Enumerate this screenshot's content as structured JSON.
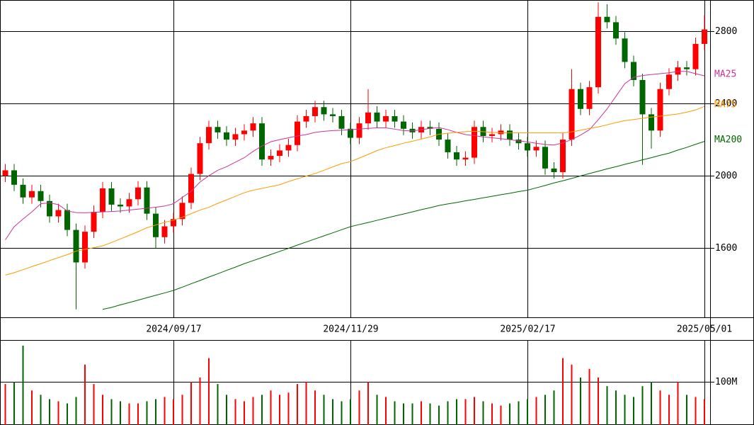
{
  "chart_data": {
    "type": "candlestick",
    "categories": [
      null,
      null,
      null,
      null,
      null,
      null,
      null,
      null,
      null,
      null,
      null,
      null,
      null,
      null,
      null,
      null,
      null,
      null,
      null,
      "2024/09/17",
      null,
      null,
      null,
      null,
      null,
      null,
      null,
      null,
      null,
      null,
      null,
      null,
      null,
      null,
      null,
      null,
      null,
      null,
      null,
      "2024/11/29",
      null,
      null,
      null,
      null,
      null,
      null,
      null,
      null,
      null,
      null,
      null,
      null,
      null,
      null,
      null,
      null,
      null,
      null,
      null,
      "2025/02/17",
      null,
      null,
      null,
      null,
      null,
      null,
      null,
      null,
      null,
      null,
      null,
      null,
      null,
      null,
      null,
      null,
      null,
      null,
      null,
      "2025/05/01"
    ],
    "open": [
      2000,
      2030,
      1950,
      1880,
      1915,
      1860,
      1775,
      1810,
      1700,
      1520,
      1690,
      1800,
      1930,
      1840,
      1830,
      1870,
      1935,
      1790,
      1660,
      1720,
      1760,
      1850,
      2010,
      2180,
      2270,
      2240,
      2200,
      2230,
      2250,
      2290,
      2090,
      2110,
      2140,
      2170,
      2300,
      2330,
      2380,
      2340,
      2330,
      2260,
      2210,
      2290,
      2350,
      2300,
      2330,
      2300,
      2260,
      2240,
      2270,
      2260,
      2200,
      2130,
      2090,
      2100,
      2270,
      2220,
      2230,
      2250,
      2200,
      2180,
      2140,
      2160,
      2040,
      2020,
      2200,
      2480,
      2370,
      2490,
      2880,
      2850,
      2760,
      2630,
      2530,
      2340,
      2250,
      2480,
      2560,
      2600,
      2590,
      2730
    ],
    "high": [
      2065,
      2065,
      1985,
      1950,
      1950,
      1895,
      1845,
      1845,
      1735,
      1725,
      1835,
      1965,
      1965,
      1875,
      1905,
      1970,
      1970,
      1825,
      1755,
      1795,
      1885,
      2045,
      2215,
      2305,
      2305,
      2275,
      2265,
      2285,
      2325,
      2325,
      2145,
      2175,
      2205,
      2335,
      2365,
      2415,
      2415,
      2375,
      2365,
      2295,
      2325,
      2480,
      2385,
      2365,
      2365,
      2335,
      2295,
      2305,
      2305,
      2295,
      2235,
      2165,
      2135,
      2305,
      2305,
      2265,
      2285,
      2285,
      2235,
      2215,
      2195,
      2195,
      2075,
      2235,
      2590,
      2515,
      2525,
      2960,
      2950,
      2885,
      2795,
      2665,
      2565,
      2375,
      2515,
      2595,
      2635,
      2635,
      2765,
      2890
    ],
    "low": [
      1965,
      1915,
      1845,
      1845,
      1825,
      1740,
      1740,
      1665,
      1260,
      1485,
      1655,
      1765,
      1805,
      1795,
      1795,
      1835,
      1755,
      1600,
      1625,
      1685,
      1725,
      1815,
      1975,
      2145,
      2205,
      2165,
      2165,
      2195,
      2215,
      2055,
      2055,
      2075,
      2105,
      2135,
      2265,
      2295,
      2305,
      2295,
      2225,
      2175,
      2175,
      2255,
      2265,
      2265,
      2265,
      2225,
      2205,
      2205,
      2225,
      2165,
      2095,
      2055,
      2055,
      2065,
      2185,
      2185,
      2195,
      2165,
      2145,
      2105,
      2105,
      2005,
      1985,
      1985,
      2165,
      2335,
      2335,
      2455,
      2815,
      2725,
      2595,
      2495,
      2060,
      2150,
      2215,
      2445,
      2525,
      2555,
      2555,
      2695
    ],
    "close": [
      2030,
      1950,
      1880,
      1915,
      1860,
      1775,
      1810,
      1700,
      1520,
      1690,
      1800,
      1930,
      1840,
      1830,
      1870,
      1935,
      1790,
      1660,
      1720,
      1760,
      1850,
      2010,
      2180,
      2270,
      2240,
      2200,
      2230,
      2250,
      2290,
      2090,
      2110,
      2140,
      2170,
      2300,
      2330,
      2380,
      2340,
      2330,
      2260,
      2210,
      2290,
      2350,
      2300,
      2330,
      2300,
      2260,
      2240,
      2270,
      2260,
      2200,
      2130,
      2090,
      2100,
      2270,
      2220,
      2230,
      2250,
      2200,
      2180,
      2140,
      2160,
      2040,
      2020,
      2200,
      2480,
      2370,
      2490,
      2880,
      2850,
      2760,
      2630,
      2530,
      2340,
      2250,
      2480,
      2560,
      2600,
      2590,
      2730,
      2810
    ],
    "up_color": "#ff0000",
    "down_color": "#006600",
    "ylim": [
      1216,
      2973
    ],
    "yticks": [
      1600,
      2000,
      2400,
      2800
    ],
    "series": [
      {
        "name": "MA25",
        "color": "#cc3399",
        "values": [
          1645,
          1718,
          1760,
          1800,
          1845,
          1850,
          1840,
          1805,
          1796,
          1795,
          1797,
          1800,
          1802,
          1805,
          1810,
          1815,
          1820,
          1826,
          1832,
          1845,
          1880,
          1914,
          1965,
          2000,
          2030,
          2050,
          2075,
          2100,
          2135,
          2165,
          2188,
          2200,
          2210,
          2220,
          2228,
          2240,
          2246,
          2250,
          2252,
          2255,
          2258,
          2262,
          2265,
          2265,
          2258,
          2250,
          2248,
          2255,
          2262,
          2267,
          2255,
          2240,
          2228,
          2222,
          2215,
          2210,
          2205,
          2200,
          2193,
          2187,
          2180,
          2173,
          2170,
          2182,
          2200,
          2225,
          2255,
          2310,
          2370,
          2440,
          2510,
          2545,
          2555,
          2560,
          2565,
          2570,
          2578,
          2578,
          2565,
          2553
        ]
      },
      {
        "name": "MA75",
        "color": "#ff9900",
        "values": [
          1450,
          1463,
          1480,
          1497,
          1513,
          1530,
          1547,
          1563,
          1583,
          1592,
          1602,
          1612,
          1630,
          1650,
          1670,
          1690,
          1712,
          1727,
          1742,
          1754,
          1770,
          1790,
          1810,
          1825,
          1847,
          1866,
          1886,
          1906,
          1920,
          1930,
          1940,
          1950,
          1968,
          1983,
          1998,
          2012,
          2030,
          2049,
          2067,
          2078,
          2098,
          2118,
          2139,
          2155,
          2167,
          2180,
          2191,
          2203,
          2215,
          2230,
          2235,
          2240,
          2244,
          2246,
          2244,
          2240,
          2237,
          2237,
          2237,
          2237,
          2237,
          2237,
          2237,
          2237,
          2243,
          2252,
          2262,
          2270,
          2282,
          2294,
          2305,
          2311,
          2318,
          2325,
          2330,
          2336,
          2342,
          2352,
          2364,
          2384
        ]
      },
      {
        "name": "MA200",
        "color": "#006600",
        "values": [
          null,
          null,
          null,
          null,
          null,
          null,
          null,
          null,
          null,
          null,
          null,
          1260,
          1271,
          1285,
          1298,
          1311,
          1325,
          1338,
          1351,
          1365,
          1383,
          1402,
          1420,
          1439,
          1457,
          1476,
          1494,
          1513,
          1530,
          1547,
          1564,
          1581,
          1598,
          1616,
          1633,
          1650,
          1667,
          1684,
          1701,
          1718,
          1730,
          1741,
          1753,
          1765,
          1777,
          1788,
          1800,
          1812,
          1823,
          1835,
          1844,
          1852,
          1861,
          1869,
          1878,
          1886,
          1895,
          1903,
          1912,
          1920,
          1933,
          1946,
          1960,
          1972,
          1985,
          1999,
          2012,
          2025,
          2038,
          2050,
          2063,
          2075,
          2088,
          2100,
          2113,
          2125,
          2142,
          2157,
          2174,
          2190
        ]
      }
    ],
    "volume": {
      "values": [
        95,
        100,
        184,
        80,
        70,
        60,
        55,
        50,
        65,
        140,
        95,
        70,
        60,
        55,
        50,
        50,
        55,
        60,
        65,
        60,
        70,
        100,
        110,
        155,
        95,
        70,
        60,
        55,
        65,
        70,
        80,
        70,
        75,
        95,
        100,
        80,
        70,
        60,
        55,
        60,
        80,
        100,
        70,
        65,
        55,
        50,
        50,
        55,
        50,
        45,
        55,
        60,
        60,
        65,
        55,
        50,
        45,
        50,
        55,
        60,
        65,
        70,
        80,
        155,
        140,
        110,
        130,
        110,
        90,
        80,
        70,
        65,
        90,
        100,
        80,
        70,
        100,
        70,
        65,
        60
      ],
      "ylim": [
        0,
        197
      ],
      "yticks": [
        {
          "value": 100,
          "label": "100M"
        }
      ]
    }
  }
}
